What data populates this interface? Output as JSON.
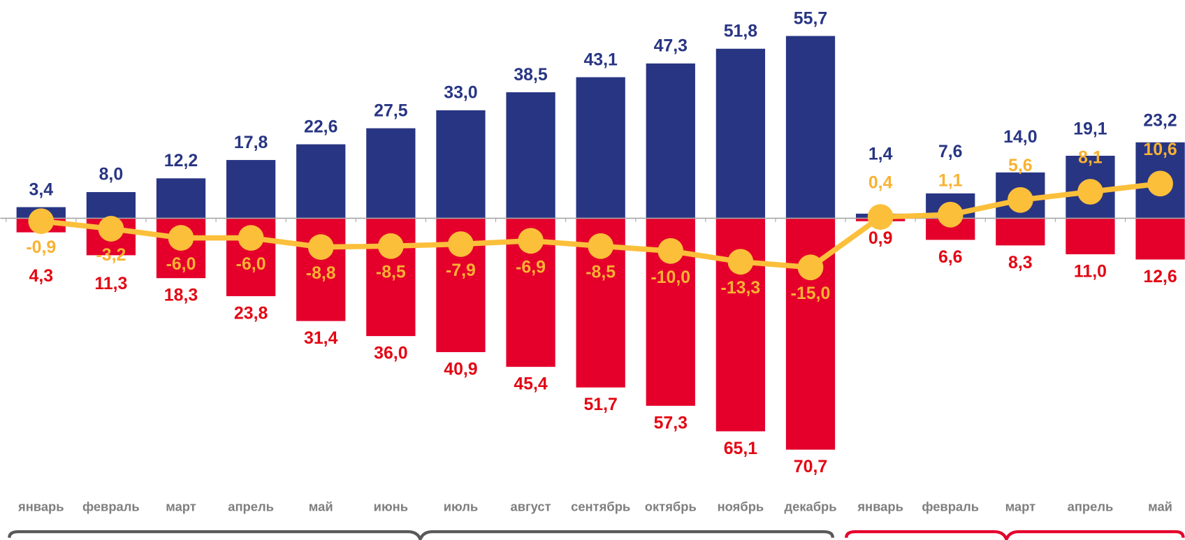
{
  "chart_data": {
    "type": "bar",
    "categories": [
      "январь",
      "февраль",
      "март",
      "апрель",
      "май",
      "июнь",
      "июль",
      "август",
      "сентябрь",
      "октябрь",
      "ноябрь",
      "декабрь",
      "январь",
      "февраль",
      "март",
      "апрель",
      "май"
    ],
    "series": [
      {
        "color": "#283583",
        "label_color": "#283583",
        "values": [
          3.4,
          8.0,
          12.2,
          17.8,
          22.6,
          27.5,
          33.0,
          38.5,
          43.1,
          47.3,
          51.8,
          55.7,
          1.4,
          7.6,
          14.0,
          19.1,
          23.2
        ],
        "value_labels": [
          "3,4",
          "8,0",
          "12,2",
          "17,8",
          "22,6",
          "27,5",
          "33,0",
          "38,5",
          "43,1",
          "47,3",
          "51,8",
          "55,7",
          "1,4",
          "7,6",
          "14,0",
          "19,1",
          "23,2"
        ]
      },
      {
        "color": "#e4002b",
        "label_color": "#e30613",
        "values": [
          -4.3,
          -11.3,
          -18.3,
          -23.8,
          -31.4,
          -36.0,
          -40.9,
          -45.4,
          -51.7,
          -57.3,
          -65.1,
          -70.7,
          -0.9,
          -6.6,
          -8.3,
          -11.0,
          -12.6
        ],
        "value_labels": [
          "4,3",
          "11,3",
          "18,3",
          "23,8",
          "31,4",
          "36,0",
          "40,9",
          "45,4",
          "51,7",
          "57,3",
          "65,1",
          "70,7",
          "0,9",
          "6,6",
          "8,3",
          "11,0",
          "12,6"
        ]
      },
      {
        "type": "line",
        "color": "#fbbf3a",
        "label_color": "#f9b233",
        "values": [
          -0.9,
          -3.2,
          -6.0,
          -6.0,
          -8.8,
          -8.5,
          -7.9,
          -6.9,
          -8.5,
          -10.0,
          -13.3,
          -15.0,
          0.4,
          1.1,
          5.6,
          8.1,
          10.6
        ],
        "value_labels": [
          "-0,9",
          "-3,2",
          "-6,0",
          "-6,0",
          "-8,8",
          "-8,5",
          "-7,9",
          "-6,9",
          "-8,5",
          "-10,0",
          "-13,3",
          "-15,0",
          "0,4",
          "1,1",
          "5,6",
          "8,1",
          "10,6"
        ]
      }
    ],
    "ylim": [
      -75,
      60
    ]
  }
}
